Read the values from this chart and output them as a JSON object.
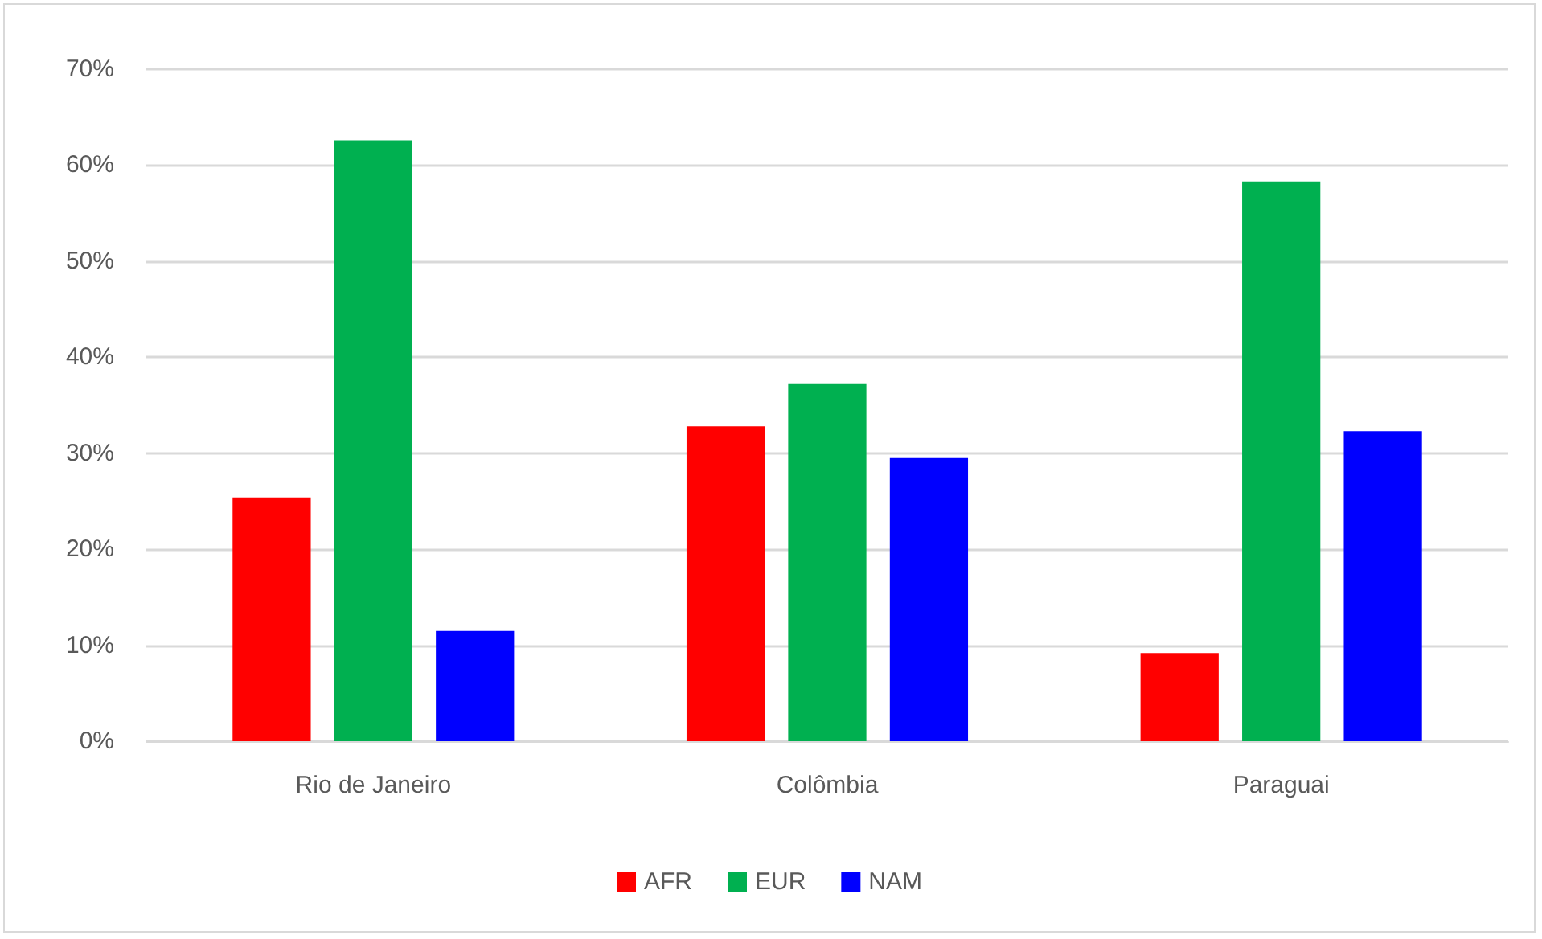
{
  "chart_data": {
    "type": "bar",
    "categories": [
      "Rio de Janeiro",
      "Colômbia",
      "Paraguai"
    ],
    "series": [
      {
        "name": "AFR",
        "color": "#ff0000",
        "values": [
          25.4,
          32.8,
          9.2
        ]
      },
      {
        "name": "EUR",
        "color": "#00b050",
        "values": [
          62.6,
          37.2,
          58.3
        ]
      },
      {
        "name": "NAM",
        "color": "#0000ff",
        "values": [
          11.5,
          29.5,
          32.3
        ]
      }
    ],
    "ylim": [
      0,
      70
    ],
    "yticks": [
      {
        "value": 0,
        "label": "0%"
      },
      {
        "value": 10,
        "label": "10%"
      },
      {
        "value": 20,
        "label": "20%"
      },
      {
        "value": 30,
        "label": "30%"
      },
      {
        "value": 40,
        "label": "40%"
      },
      {
        "value": 50,
        "label": "50%"
      },
      {
        "value": 60,
        "label": "60%"
      },
      {
        "value": 70,
        "label": "70%"
      }
    ],
    "grid": "y",
    "legend": "bottom"
  }
}
